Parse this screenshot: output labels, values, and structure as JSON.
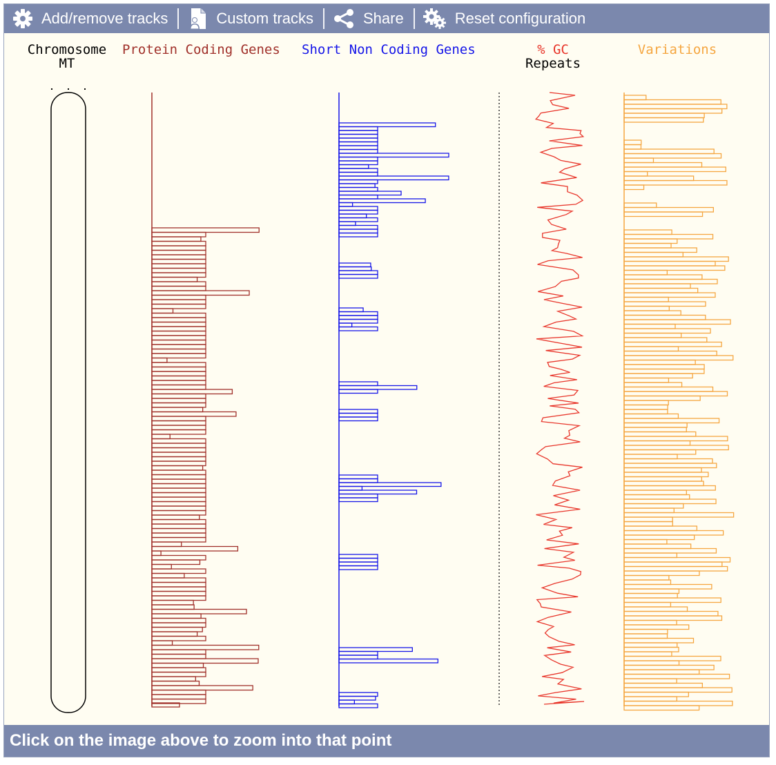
{
  "toolbar": {
    "add_remove": {
      "label": "Add/remove tracks",
      "icon": "gear-icon"
    },
    "custom": {
      "label": "Custom tracks",
      "icon": "document-user-icon"
    },
    "share": {
      "label": "Share",
      "icon": "share-icon"
    },
    "reset": {
      "label": "Reset configuration",
      "icon": "reset-gears-icon"
    }
  },
  "tracks": {
    "chromosome": {
      "label": "Chromosome",
      "name": "MT"
    },
    "protein_coding": {
      "label": "Protein Coding Genes",
      "color": "#a0302a"
    },
    "short_non_coding": {
      "label": "Short Non Coding Genes",
      "color": "#1515e8"
    },
    "gc": {
      "label": "% GC",
      "color": "#e8352a"
    },
    "repeats": {
      "label": "Repeats",
      "color": "#000000"
    },
    "variations": {
      "label": "Variations",
      "color": "#f5a640"
    }
  },
  "footer": {
    "text": "Click on the image above to zoom into that point"
  }
}
